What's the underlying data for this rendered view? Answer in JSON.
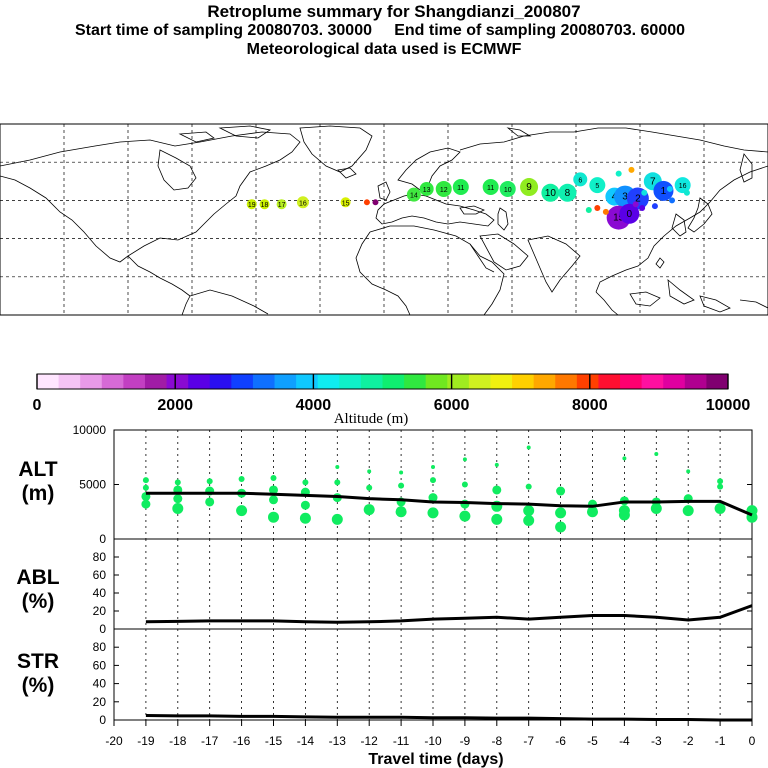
{
  "header": {
    "title": "Retroplume summary for Shangdianzi_200807",
    "sampling": "Start time of sampling 20080703. 30000     End time of sampling 20080703. 60000",
    "met": "Meteorological data used is ECMWF"
  },
  "colorbar": {
    "label": "Altitude (m)",
    "tick_labels": [
      "0",
      "2000",
      "4000",
      "6000",
      "8000",
      "10000"
    ],
    "colors": [
      "#ffe6ff",
      "#f5c4f5",
      "#e89ae8",
      "#d66ad6",
      "#c23fc2",
      "#a11ca6",
      "#8a0ad2",
      "#5a00e6",
      "#2a10f0",
      "#1040ff",
      "#1070ff",
      "#10a0ff",
      "#10c8ff",
      "#10ecf0",
      "#10f0c8",
      "#10f0a0",
      "#10ee70",
      "#30e840",
      "#70e820",
      "#a0ec20",
      "#d0f020",
      "#f0f010",
      "#ffd000",
      "#ffa800",
      "#ff7800",
      "#ff4000",
      "#ff1030",
      "#ff0070",
      "#ff10a0",
      "#e000a0",
      "#b00090",
      "#800070"
    ]
  },
  "map": {
    "plume_labels": [
      {
        "lon": -62,
        "lat": 38,
        "label": "19"
      },
      {
        "lon": -56,
        "lat": 38,
        "label": "18"
      },
      {
        "lon": -48,
        "lat": 38,
        "label": "17"
      },
      {
        "lon": -38,
        "lat": 39,
        "label": "16"
      },
      {
        "lon": -18,
        "lat": 39,
        "label": "15"
      },
      {
        "lon": 14,
        "lat": 43,
        "label": "14"
      },
      {
        "lon": 20,
        "lat": 46,
        "label": "13"
      },
      {
        "lon": 28,
        "lat": 46,
        "label": "12"
      },
      {
        "lon": 36,
        "lat": 47,
        "label": "11"
      },
      {
        "lon": 50,
        "lat": 47,
        "label": "11"
      },
      {
        "lon": 58,
        "lat": 46,
        "label": "10"
      },
      {
        "lon": 68,
        "lat": 47,
        "label": "9"
      },
      {
        "lon": 78,
        "lat": 44,
        "label": "10"
      },
      {
        "lon": 86,
        "lat": 44,
        "label": "8"
      },
      {
        "lon": 92,
        "lat": 51,
        "label": "6"
      },
      {
        "lon": 100,
        "lat": 48,
        "label": "5"
      },
      {
        "lon": 108,
        "lat": 42,
        "label": "4"
      },
      {
        "lon": 113,
        "lat": 42,
        "label": "3"
      },
      {
        "lon": 119,
        "lat": 41,
        "label": "2"
      },
      {
        "lon": 126,
        "lat": 50,
        "label": "7"
      },
      {
        "lon": 131,
        "lat": 45,
        "label": "1"
      },
      {
        "lon": 140,
        "lat": 48,
        "label": "16"
      },
      {
        "lon": 110,
        "lat": 31,
        "label": "15"
      },
      {
        "lon": 115,
        "lat": 33,
        "label": "0"
      }
    ]
  },
  "panels": {
    "alt": {
      "label_1": "ALT",
      "label_2": "(m)",
      "ylim": [
        0,
        10000
      ],
      "ticks": [
        "10000",
        "5000",
        "0"
      ]
    },
    "abl": {
      "label_1": "ABL",
      "label_2": "(%)",
      "ylim": [
        0,
        100
      ],
      "ticks": [
        "80",
        "60",
        "40",
        "20",
        "0"
      ]
    },
    "str": {
      "label_1": "STR",
      "label_2": "(%)",
      "ylim": [
        0,
        100
      ],
      "ticks": [
        "80",
        "60",
        "40",
        "20",
        "0"
      ]
    }
  },
  "xaxis": {
    "label": "Travel time (days)",
    "tick_labels": [
      "-20",
      "-19",
      "-18",
      "-17",
      "-16",
      "-15",
      "-14",
      "-13",
      "-12",
      "-11",
      "-10",
      "-9",
      "-8",
      "-7",
      "-6",
      "-5",
      "-4",
      "-3",
      "-2",
      "-1",
      "0"
    ]
  },
  "chart_data": [
    {
      "type": "scatter",
      "title": "ALT (m)",
      "xlabel": "Travel time (days)",
      "ylabel": "ALT (m)",
      "xlim": [
        -20,
        0
      ],
      "ylim": [
        0,
        10000
      ],
      "scatter_points": [
        {
          "x": -19,
          "y": 5400
        },
        {
          "x": -19,
          "y": 4700
        },
        {
          "x": -19,
          "y": 3900
        },
        {
          "x": -19,
          "y": 3200
        },
        {
          "x": -18,
          "y": 5200
        },
        {
          "x": -18,
          "y": 4500
        },
        {
          "x": -18,
          "y": 3700
        },
        {
          "x": -18,
          "y": 2800
        },
        {
          "x": -17,
          "y": 5300
        },
        {
          "x": -17,
          "y": 4400
        },
        {
          "x": -17,
          "y": 3400
        },
        {
          "x": -16,
          "y": 5500
        },
        {
          "x": -16,
          "y": 4200
        },
        {
          "x": -16,
          "y": 2600
        },
        {
          "x": -15,
          "y": 5600
        },
        {
          "x": -15,
          "y": 4500
        },
        {
          "x": -15,
          "y": 3600
        },
        {
          "x": -15,
          "y": 2000
        },
        {
          "x": -14,
          "y": 5200
        },
        {
          "x": -14,
          "y": 4300
        },
        {
          "x": -14,
          "y": 3100
        },
        {
          "x": -14,
          "y": 1900
        },
        {
          "x": -13,
          "y": 6600
        },
        {
          "x": -13,
          "y": 5200
        },
        {
          "x": -13,
          "y": 3800
        },
        {
          "x": -13,
          "y": 1800
        },
        {
          "x": -12,
          "y": 6200
        },
        {
          "x": -12,
          "y": 4700
        },
        {
          "x": -12,
          "y": 2700
        },
        {
          "x": -11,
          "y": 6100
        },
        {
          "x": -11,
          "y": 4900
        },
        {
          "x": -11,
          "y": 3400
        },
        {
          "x": -11,
          "y": 2500
        },
        {
          "x": -10,
          "y": 6600
        },
        {
          "x": -10,
          "y": 5400
        },
        {
          "x": -10,
          "y": 3800
        },
        {
          "x": -10,
          "y": 2400
        },
        {
          "x": -9,
          "y": 7300
        },
        {
          "x": -9,
          "y": 5000
        },
        {
          "x": -9,
          "y": 3200
        },
        {
          "x": -9,
          "y": 2100
        },
        {
          "x": -8,
          "y": 6800
        },
        {
          "x": -8,
          "y": 4500
        },
        {
          "x": -8,
          "y": 3000
        },
        {
          "x": -8,
          "y": 1800
        },
        {
          "x": -7,
          "y": 8400
        },
        {
          "x": -7,
          "y": 4800
        },
        {
          "x": -7,
          "y": 2600
        },
        {
          "x": -7,
          "y": 1700
        },
        {
          "x": -6,
          "y": 4400
        },
        {
          "x": -6,
          "y": 2400
        },
        {
          "x": -6,
          "y": 1100
        },
        {
          "x": -5,
          "y": 3200
        },
        {
          "x": -5,
          "y": 2500
        },
        {
          "x": -4,
          "y": 7400
        },
        {
          "x": -4,
          "y": 3500
        },
        {
          "x": -4,
          "y": 2600
        },
        {
          "x": -4,
          "y": 2200
        },
        {
          "x": -3,
          "y": 7800
        },
        {
          "x": -3,
          "y": 3400
        },
        {
          "x": -3,
          "y": 2800
        },
        {
          "x": -2,
          "y": 6200
        },
        {
          "x": -2,
          "y": 3700
        },
        {
          "x": -2,
          "y": 2600
        },
        {
          "x": -1,
          "y": 5300
        },
        {
          "x": -1,
          "y": 4800
        },
        {
          "x": -1,
          "y": 2800
        },
        {
          "x": 0,
          "y": 2600
        },
        {
          "x": 0,
          "y": 2000
        }
      ],
      "mean_line": {
        "x": [
          -19,
          -18,
          -17,
          -16,
          -15,
          -14,
          -13,
          -12,
          -11,
          -10,
          -9,
          -8,
          -7,
          -6,
          -5,
          -4,
          -3,
          -2,
          -1,
          0
        ],
        "y": [
          4200,
          4200,
          4200,
          4200,
          4100,
          4000,
          3900,
          3700,
          3600,
          3400,
          3350,
          3250,
          3200,
          3050,
          3000,
          3400,
          3400,
          3450,
          3450,
          2200
        ]
      }
    },
    {
      "type": "line",
      "title": "ABL (%)",
      "ylabel": "ABL (%)",
      "xlim": [
        -20,
        0
      ],
      "ylim": [
        0,
        100
      ],
      "x": [
        -19,
        -18,
        -17,
        -16,
        -15,
        -14,
        -13,
        -12,
        -11,
        -10,
        -9,
        -8,
        -7,
        -6,
        -5,
        -4,
        -3,
        -2,
        -1,
        0
      ],
      "values": [
        8,
        8.5,
        9,
        9,
        9,
        8,
        7.5,
        8,
        9,
        11,
        12,
        13,
        11,
        13,
        15,
        15,
        13,
        10,
        13,
        26
      ]
    },
    {
      "type": "line",
      "title": "STR (%)",
      "ylabel": "STR (%)",
      "xlabel": "Travel time (days)",
      "xlim": [
        -20,
        0
      ],
      "ylim": [
        0,
        100
      ],
      "x": [
        -19,
        -18,
        -17,
        -16,
        -15,
        -14,
        -13,
        -12,
        -11,
        -10,
        -9,
        -8,
        -7,
        -6,
        -5,
        -4,
        -3,
        -2,
        -1,
        0
      ],
      "values": [
        5,
        4.5,
        4.5,
        4,
        4,
        3.5,
        3,
        3,
        3,
        2.5,
        2.5,
        2,
        2,
        1.5,
        1,
        1,
        0.5,
        0.5,
        0,
        0
      ]
    }
  ]
}
